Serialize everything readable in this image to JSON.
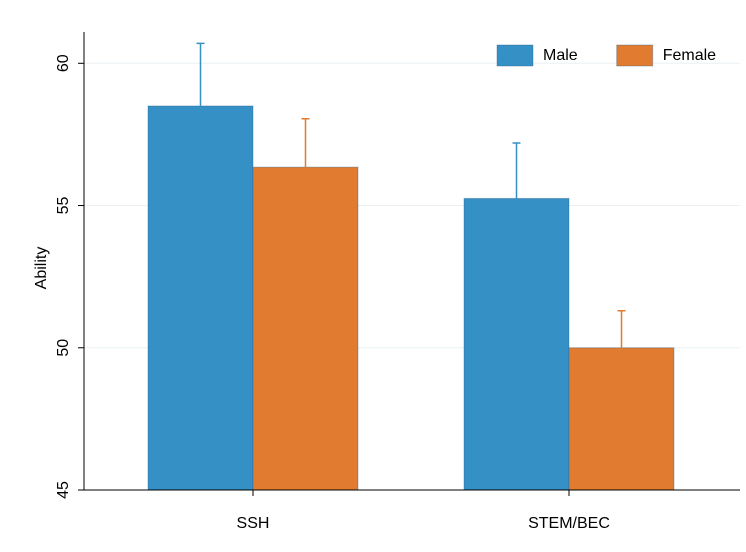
{
  "chart_data": {
    "type": "bar",
    "y_label": "Ability",
    "categories": [
      "SSH",
      "STEM/BEC"
    ],
    "series": [
      {
        "name": "Male",
        "color": "#3590c6",
        "values": [
          58.5,
          55.25
        ],
        "errors": [
          2.2,
          1.95
        ]
      },
      {
        "name": "Female",
        "color": "#e07b30",
        "values": [
          56.35,
          50.0
        ],
        "errors": [
          1.7,
          1.3
        ]
      }
    ],
    "ylim": [
      45,
      61.1
    ],
    "yticks": [
      45,
      50,
      55,
      60
    ],
    "grid": true,
    "legend": "top-right"
  }
}
